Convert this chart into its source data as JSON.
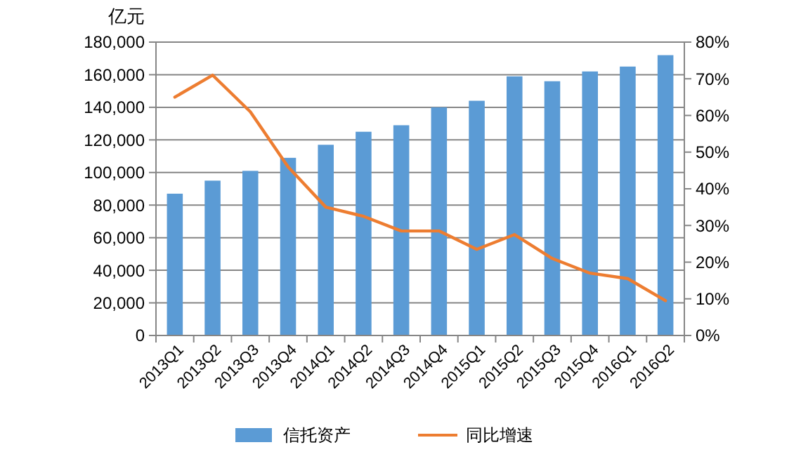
{
  "chart_data": {
    "type": "bar",
    "ylabel": "亿元",
    "categories": [
      "2013Q1",
      "2013Q2",
      "2013Q3",
      "2013Q4",
      "2014Q1",
      "2014Q2",
      "2014Q3",
      "2014Q4",
      "2015Q1",
      "2015Q2",
      "2015Q3",
      "2015Q4",
      "2016Q1",
      "2016Q2"
    ],
    "series": [
      {
        "name": "信托资产",
        "color": "#5b9bd5",
        "values": [
          87000,
          95000,
          101000,
          109000,
          117000,
          125000,
          129000,
          140000,
          144000,
          159000,
          156000,
          162000,
          165000,
          172000
        ]
      },
      {
        "name": "同比增速",
        "type": "line",
        "axis": "y2",
        "color": "#ed7d31",
        "values": [
          65,
          71,
          61,
          46,
          35,
          32.5,
          28.5,
          28.5,
          23.5,
          27.5,
          21,
          17,
          15.5,
          9.5
        ]
      }
    ],
    "ylim": [
      0,
      180000
    ],
    "yticks": [
      {
        "value": 0,
        "label": "0"
      },
      {
        "value": 20000,
        "label": "20,000"
      },
      {
        "value": 40000,
        "label": "40,000"
      },
      {
        "value": 60000,
        "label": "60,000"
      },
      {
        "value": 80000,
        "label": "80,000"
      },
      {
        "value": 100000,
        "label": "100,000"
      },
      {
        "value": 120000,
        "label": "120,000"
      },
      {
        "value": 140000,
        "label": "140,000"
      },
      {
        "value": 160000,
        "label": "160,000"
      },
      {
        "value": 180000,
        "label": "180,000"
      }
    ],
    "y2lim": [
      0,
      80
    ],
    "y2ticks": [
      {
        "value": 0,
        "label": "0%"
      },
      {
        "value": 10,
        "label": "10%"
      },
      {
        "value": 20,
        "label": "20%"
      },
      {
        "value": 30,
        "label": "30%"
      },
      {
        "value": 40,
        "label": "40%"
      },
      {
        "value": 50,
        "label": "50%"
      },
      {
        "value": 60,
        "label": "60%"
      },
      {
        "value": 70,
        "label": "70%"
      },
      {
        "value": 80,
        "label": "80%"
      }
    ],
    "grid": "y",
    "legend": "bottom",
    "marker": "none",
    "line_style": "solid"
  }
}
